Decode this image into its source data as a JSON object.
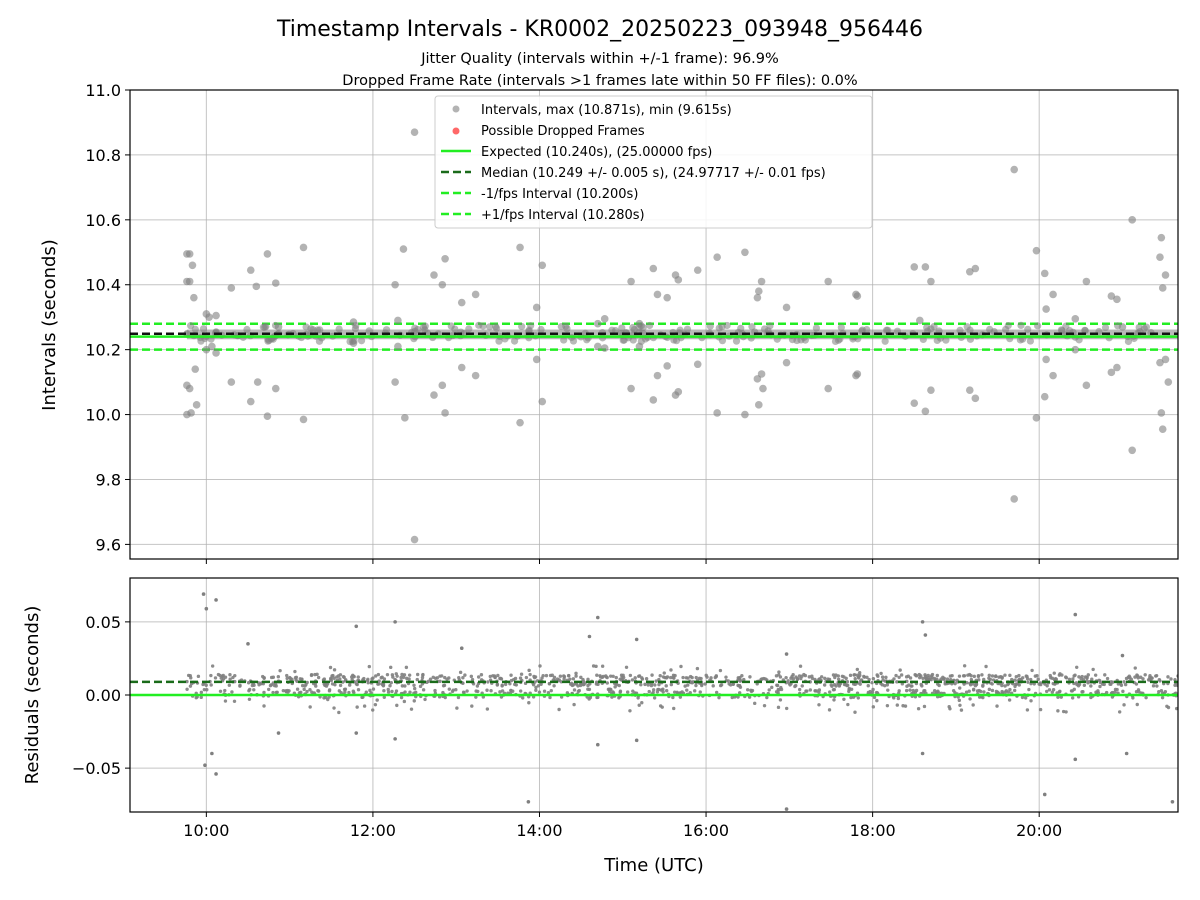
{
  "figure": {
    "title": "Timestamp Intervals - KR0002_20250223_093948_956446",
    "subtitle_1": "Jitter Quality (intervals within +/-1 frame): 96.9%",
    "subtitle_2": "Dropped Frame Rate (intervals >1 frames late within 50 FF files): 0.0%",
    "xlabel": "Time (UTC)",
    "colors": {
      "scatter": "#808080",
      "dropped": "#ff4d4d",
      "expected": "#22ee22",
      "median": "#1a6b1a",
      "fps_bound": "#22ee22",
      "grid": "#b0b0b0"
    }
  },
  "chart_data": [
    {
      "type": "scatter",
      "panel": "intervals",
      "ylabel": "Intervals (seconds)",
      "xlim": [
        "09:05",
        "21:40"
      ],
      "ylim": [
        9.555,
        11.0
      ],
      "x_ticks": [
        "10:00",
        "12:00",
        "14:00",
        "16:00",
        "18:00",
        "20:00"
      ],
      "y_ticks": [
        "9.6",
        "9.8",
        "10.0",
        "10.2",
        "10.4",
        "10.6",
        "10.8",
        "11.0"
      ],
      "grid": true,
      "legend_position": "upper-center",
      "legend": [
        "Intervals, max (10.871s), min (9.615s)",
        "Possible Dropped Frames",
        "Expected (10.240s), (25.00000 fps)",
        "Median (10.249 +/- 0.005 s), (24.97717 +/- 0.01 fps)",
        "-1/fps Interval (10.200s)",
        "+1/fps Interval (10.280s)"
      ],
      "reference_lines": {
        "expected": 10.24,
        "median": 10.249,
        "minus_fps": 10.2,
        "plus_fps": 10.28
      },
      "points": [
        [
          "09:46",
          10.495
        ],
        [
          "09:48",
          10.495
        ],
        [
          "09:46",
          10.41
        ],
        [
          "09:48",
          10.41
        ],
        [
          "09:50",
          10.46
        ],
        [
          "09:51",
          10.36
        ],
        [
          "09:52",
          10.14
        ],
        [
          "09:46",
          10.09
        ],
        [
          "09:48",
          10.08
        ],
        [
          "09:53",
          10.03
        ],
        [
          "09:46",
          10.0
        ],
        [
          "09:49",
          10.005
        ],
        [
          "10:00",
          10.31
        ],
        [
          "10:02",
          10.3
        ],
        [
          "10:07",
          10.305
        ],
        [
          "10:00",
          10.2
        ],
        [
          "10:04",
          10.21
        ],
        [
          "10:07",
          10.19
        ],
        [
          "10:18",
          10.39
        ],
        [
          "10:18",
          10.1
        ],
        [
          "10:32",
          10.445
        ],
        [
          "10:36",
          10.395
        ],
        [
          "10:32",
          10.04
        ],
        [
          "10:37",
          10.1
        ],
        [
          "10:44",
          10.495
        ],
        [
          "10:44",
          9.995
        ],
        [
          "10:50",
          10.405
        ],
        [
          "10:50",
          10.08
        ],
        [
          "10:52",
          10.27
        ],
        [
          "11:10",
          10.515
        ],
        [
          "11:10",
          9.985
        ],
        [
          "11:46",
          10.285
        ],
        [
          "11:46",
          10.22
        ],
        [
          "12:16",
          10.4
        ],
        [
          "12:18",
          10.29
        ],
        [
          "12:16",
          10.1
        ],
        [
          "12:18",
          10.21
        ],
        [
          "12:22",
          10.51
        ],
        [
          "12:23",
          9.99
        ],
        [
          "12:30",
          10.87
        ],
        [
          "12:30",
          9.615
        ],
        [
          "12:44",
          10.43
        ],
        [
          "12:50",
          10.4
        ],
        [
          "12:52",
          10.48
        ],
        [
          "12:50",
          10.09
        ],
        [
          "12:52",
          10.005
        ],
        [
          "12:44",
          10.06
        ],
        [
          "13:04",
          10.345
        ],
        [
          "13:04",
          10.145
        ],
        [
          "13:14",
          10.37
        ],
        [
          "13:14",
          10.12
        ],
        [
          "13:46",
          10.515
        ],
        [
          "13:46",
          9.975
        ],
        [
          "13:58",
          10.33
        ],
        [
          "14:02",
          10.46
        ],
        [
          "13:58",
          10.17
        ],
        [
          "14:02",
          10.04
        ],
        [
          "14:42",
          10.28
        ],
        [
          "14:47",
          10.295
        ],
        [
          "14:42",
          10.21
        ],
        [
          "14:47",
          10.205
        ],
        [
          "15:06",
          10.41
        ],
        [
          "15:06",
          10.08
        ],
        [
          "15:12",
          10.28
        ],
        [
          "15:12",
          10.21
        ],
        [
          "15:22",
          10.45
        ],
        [
          "15:25",
          10.37
        ],
        [
          "15:22",
          10.045
        ],
        [
          "15:25",
          10.12
        ],
        [
          "15:32",
          10.36
        ],
        [
          "15:38",
          10.43
        ],
        [
          "15:40",
          10.415
        ],
        [
          "15:32",
          10.15
        ],
        [
          "15:38",
          10.06
        ],
        [
          "15:40",
          10.07
        ],
        [
          "15:54",
          10.445
        ],
        [
          "15:54",
          10.155
        ],
        [
          "16:08",
          10.485
        ],
        [
          "16:08",
          10.005
        ],
        [
          "16:28",
          10.5
        ],
        [
          "16:28",
          10.0
        ],
        [
          "16:37",
          10.36
        ],
        [
          "16:38",
          10.38
        ],
        [
          "16:40",
          10.41
        ],
        [
          "16:37",
          10.11
        ],
        [
          "16:38",
          10.03
        ],
        [
          "16:40",
          10.125
        ],
        [
          "16:41",
          10.08
        ],
        [
          "16:58",
          10.33
        ],
        [
          "16:58",
          10.16
        ],
        [
          "17:28",
          10.41
        ],
        [
          "17:28",
          10.08
        ],
        [
          "17:48",
          10.37
        ],
        [
          "17:49",
          10.365
        ],
        [
          "17:48",
          10.12
        ],
        [
          "17:49",
          10.125
        ],
        [
          "18:30",
          10.455
        ],
        [
          "18:34",
          10.29
        ],
        [
          "18:38",
          10.455
        ],
        [
          "18:42",
          10.41
        ],
        [
          "18:30",
          10.035
        ],
        [
          "18:38",
          10.01
        ],
        [
          "18:42",
          10.075
        ],
        [
          "19:10",
          10.44
        ],
        [
          "19:14",
          10.45
        ],
        [
          "19:10",
          10.075
        ],
        [
          "19:14",
          10.05
        ],
        [
          "19:42",
          10.755
        ],
        [
          "19:42",
          9.74
        ],
        [
          "19:58",
          10.505
        ],
        [
          "19:58",
          9.99
        ],
        [
          "20:04",
          10.435
        ],
        [
          "20:05",
          10.325
        ],
        [
          "20:10",
          10.37
        ],
        [
          "20:04",
          10.055
        ],
        [
          "20:05",
          10.17
        ],
        [
          "20:10",
          10.12
        ],
        [
          "20:26",
          10.295
        ],
        [
          "20:26",
          10.2
        ],
        [
          "20:34",
          10.41
        ],
        [
          "20:34",
          10.09
        ],
        [
          "20:52",
          10.365
        ],
        [
          "20:56",
          10.355
        ],
        [
          "20:52",
          10.13
        ],
        [
          "20:56",
          10.145
        ],
        [
          "21:00",
          10.27
        ],
        [
          "21:07",
          10.6
        ],
        [
          "21:07",
          9.89
        ],
        [
          "21:28",
          10.545
        ],
        [
          "21:27",
          10.485
        ],
        [
          "21:29",
          10.39
        ],
        [
          "21:31",
          10.43
        ],
        [
          "21:27",
          10.16
        ],
        [
          "21:28",
          10.005
        ],
        [
          "21:29",
          9.955
        ],
        [
          "21:31",
          10.17
        ],
        [
          "21:33",
          10.1
        ]
      ]
    },
    {
      "type": "scatter",
      "panel": "residuals",
      "ylabel": "Residuals (seconds)",
      "xlim": [
        "09:05",
        "21:40"
      ],
      "ylim": [
        -0.08,
        0.08
      ],
      "x_ticks": [
        "10:00",
        "12:00",
        "14:00",
        "16:00",
        "18:00",
        "20:00"
      ],
      "y_ticks": [
        "−0.05",
        "0.00",
        "0.05"
      ],
      "grid": true,
      "reference_lines": {
        "expected": 0.0,
        "median": 0.009
      },
      "points": [
        [
          "09:58",
          0.069
        ],
        [
          "10:00",
          0.059
        ],
        [
          "10:07",
          0.065
        ],
        [
          "09:59",
          -0.048
        ],
        [
          "10:04",
          -0.04
        ],
        [
          "10:07",
          -0.054
        ],
        [
          "11:48",
          0.047
        ],
        [
          "12:16",
          0.05
        ],
        [
          "11:48",
          -0.026
        ],
        [
          "12:16",
          -0.03
        ],
        [
          "13:52",
          -0.073
        ],
        [
          "14:42",
          0.053
        ],
        [
          "14:42",
          -0.034
        ],
        [
          "14:36",
          0.04
        ],
        [
          "15:10",
          0.038
        ],
        [
          "15:10",
          -0.031
        ],
        [
          "16:58",
          0.028
        ],
        [
          "16:58",
          -0.078
        ],
        [
          "18:36",
          0.05
        ],
        [
          "18:38",
          0.041
        ],
        [
          "18:36",
          -0.04
        ],
        [
          "20:04",
          -0.068
        ],
        [
          "20:26",
          0.055
        ],
        [
          "20:26",
          -0.044
        ],
        [
          "21:00",
          0.027
        ],
        [
          "21:03",
          -0.04
        ],
        [
          "21:36",
          -0.073
        ],
        [
          "10:30",
          0.035
        ],
        [
          "10:52",
          -0.026
        ],
        [
          "13:04",
          0.032
        ]
      ],
      "band": {
        "description_of_dense_cluster": "dense residual cloud around the median",
        "x_range": [
          "09:46",
          "21:40"
        ],
        "center": 0.009,
        "spread": 0.012
      }
    }
  ]
}
